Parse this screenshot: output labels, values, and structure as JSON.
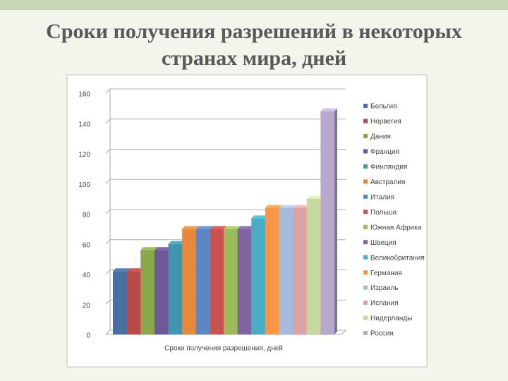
{
  "chart_data": {
    "type": "bar",
    "title": "Сроки получения разрешений в некоторых странах мира, дней",
    "categories": [
      "Сроки получения разрешения, дней"
    ],
    "ylim": [
      0,
      160
    ],
    "yticks": [
      0,
      20,
      40,
      60,
      80,
      100,
      120,
      140,
      160
    ],
    "grid": true,
    "series": [
      {
        "name": "Бельгия",
        "color": "#4a6fa5",
        "values": [
          42
        ]
      },
      {
        "name": "Норвегия",
        "color": "#b84a47",
        "values": [
          42
        ]
      },
      {
        "name": "Дания",
        "color": "#8aa84b",
        "values": [
          56
        ]
      },
      {
        "name": "Франция",
        "color": "#6f589a",
        "values": [
          56
        ]
      },
      {
        "name": "Финляндия",
        "color": "#3f96ae",
        "values": [
          60
        ]
      },
      {
        "name": "Австралия",
        "color": "#e8883a",
        "values": [
          70
        ]
      },
      {
        "name": "Италия",
        "color": "#5b87c5",
        "values": [
          70
        ]
      },
      {
        "name": "Польша",
        "color": "#c9514f",
        "values": [
          70
        ]
      },
      {
        "name": "Южная Африка",
        "color": "#9cbb59",
        "values": [
          70
        ]
      },
      {
        "name": "Швеция",
        "color": "#8064a2",
        "values": [
          70
        ]
      },
      {
        "name": "Великобритания",
        "color": "#4bacc6",
        "values": [
          77
        ]
      },
      {
        "name": "Германия",
        "color": "#f79646",
        "values": [
          84
        ]
      },
      {
        "name": "Израиль",
        "color": "#a7bbdc",
        "values": [
          84
        ]
      },
      {
        "name": "Испания",
        "color": "#dba4a3",
        "values": [
          84
        ]
      },
      {
        "name": "Нидерланды",
        "color": "#c5d8a0",
        "values": [
          90
        ]
      },
      {
        "name": "Россия",
        "color": "#b8a9cc",
        "values": [
          148
        ]
      }
    ]
  }
}
